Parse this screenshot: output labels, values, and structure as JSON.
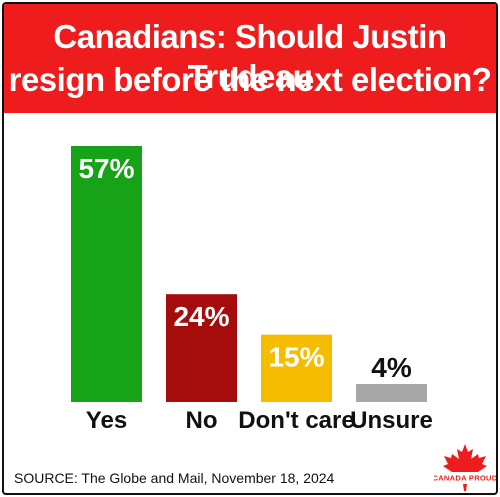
{
  "title_line1": "Canadians: Should Justin Trudeau",
  "title_line2": "resign before the next election?",
  "source": "SOURCE: The Globe and Mail, November 18, 2024",
  "logo_text": "CANADA PROUD",
  "colors": {
    "header": "#ee1c1c",
    "yes": "#16a318",
    "no": "#a50c0c",
    "dont_care": "#f6bd00",
    "unsure": "#a7a7a7"
  },
  "chart_data": {
    "type": "bar",
    "categories": [
      "Yes",
      "No",
      "Don't care",
      "Unsure"
    ],
    "values": [
      57,
      24,
      15,
      4
    ],
    "value_labels": [
      "57%",
      "24%",
      "15%",
      "4%"
    ],
    "unit": "%",
    "ylim": [
      0,
      57
    ],
    "grid": false,
    "legend": "none"
  }
}
